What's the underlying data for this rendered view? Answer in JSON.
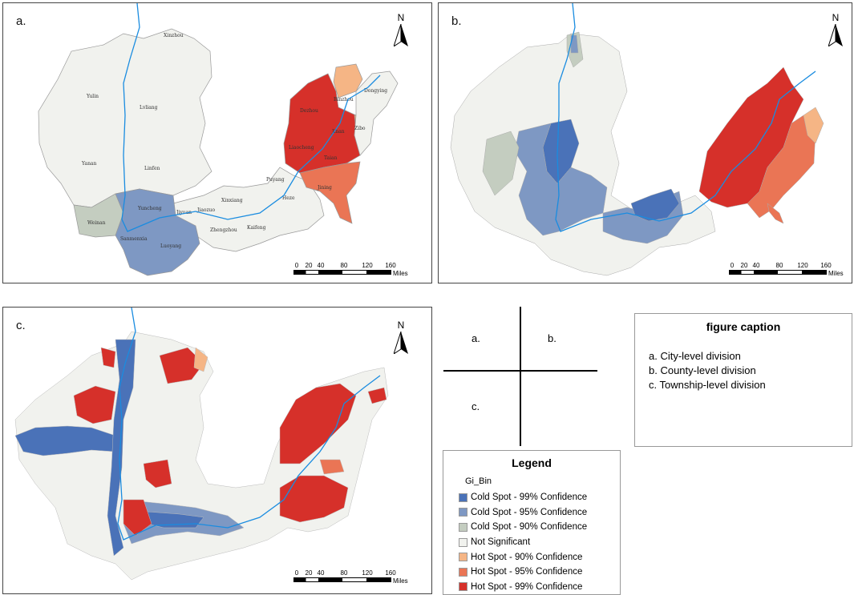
{
  "panels": {
    "a": {
      "letter": "a.",
      "north": "N"
    },
    "b": {
      "letter": "b.",
      "north": "N"
    },
    "c": {
      "letter": "c.",
      "north": "N"
    }
  },
  "scalebar": {
    "ticks": [
      "0",
      "20",
      "40",
      "80",
      "120",
      "160"
    ],
    "units": "Miles"
  },
  "cities": {
    "xinzhou": "Xinzhou",
    "yulin": "Yulin",
    "lvliang": "Lvliang",
    "yanan": "Yanan",
    "linfen": "Linfen",
    "weinan": "Weinan",
    "yuncheng": "Yuncheng",
    "jiyuan": "Jiyuan",
    "sanmenxia": "Sanmenxia",
    "luoyang": "Luoyang",
    "jiaozuo": "Jiaozuo",
    "xinxiang": "Xinxiang",
    "zhengzhou": "Zhengzhou",
    "kaifeng": "Kaifeng",
    "puyang": "Puyang",
    "heze": "Heze",
    "jining": "Jining",
    "taian": "Taian",
    "jinan": "Jinan",
    "liaocheng": "Liaocheng",
    "dezhou": "Dezhou",
    "binzhou": "Binzhou",
    "dongying": "Dongying",
    "zibo": "Zibo"
  },
  "layout_guide": {
    "a": "a.",
    "b": "b.",
    "c": "c."
  },
  "caption": {
    "title": "figure caption",
    "items": [
      "a. City-level division",
      "b. County-level division",
      "c. Township-level division"
    ]
  },
  "legend": {
    "title": "Legend",
    "field": "Gi_Bin",
    "entries": [
      {
        "label": "Cold Spot - 99% Confidence",
        "color": "#4a72b8"
      },
      {
        "label": "Cold Spot - 95% Confidence",
        "color": "#7e98c3"
      },
      {
        "label": "Cold Spot - 90% Confidence",
        "color": "#c4cdc0"
      },
      {
        "label": "Not Significant",
        "color": "#f1f2ee"
      },
      {
        "label": "Hot Spot - 90% Confidence",
        "color": "#f5b585"
      },
      {
        "label": "Hot Spot - 95% Confidence",
        "color": "#ea7555"
      },
      {
        "label": "Hot Spot - 99% Confidence",
        "color": "#d6302a"
      }
    ]
  },
  "colors": {
    "river": "#1a8ce0",
    "boundary": "#9a9a9a"
  }
}
